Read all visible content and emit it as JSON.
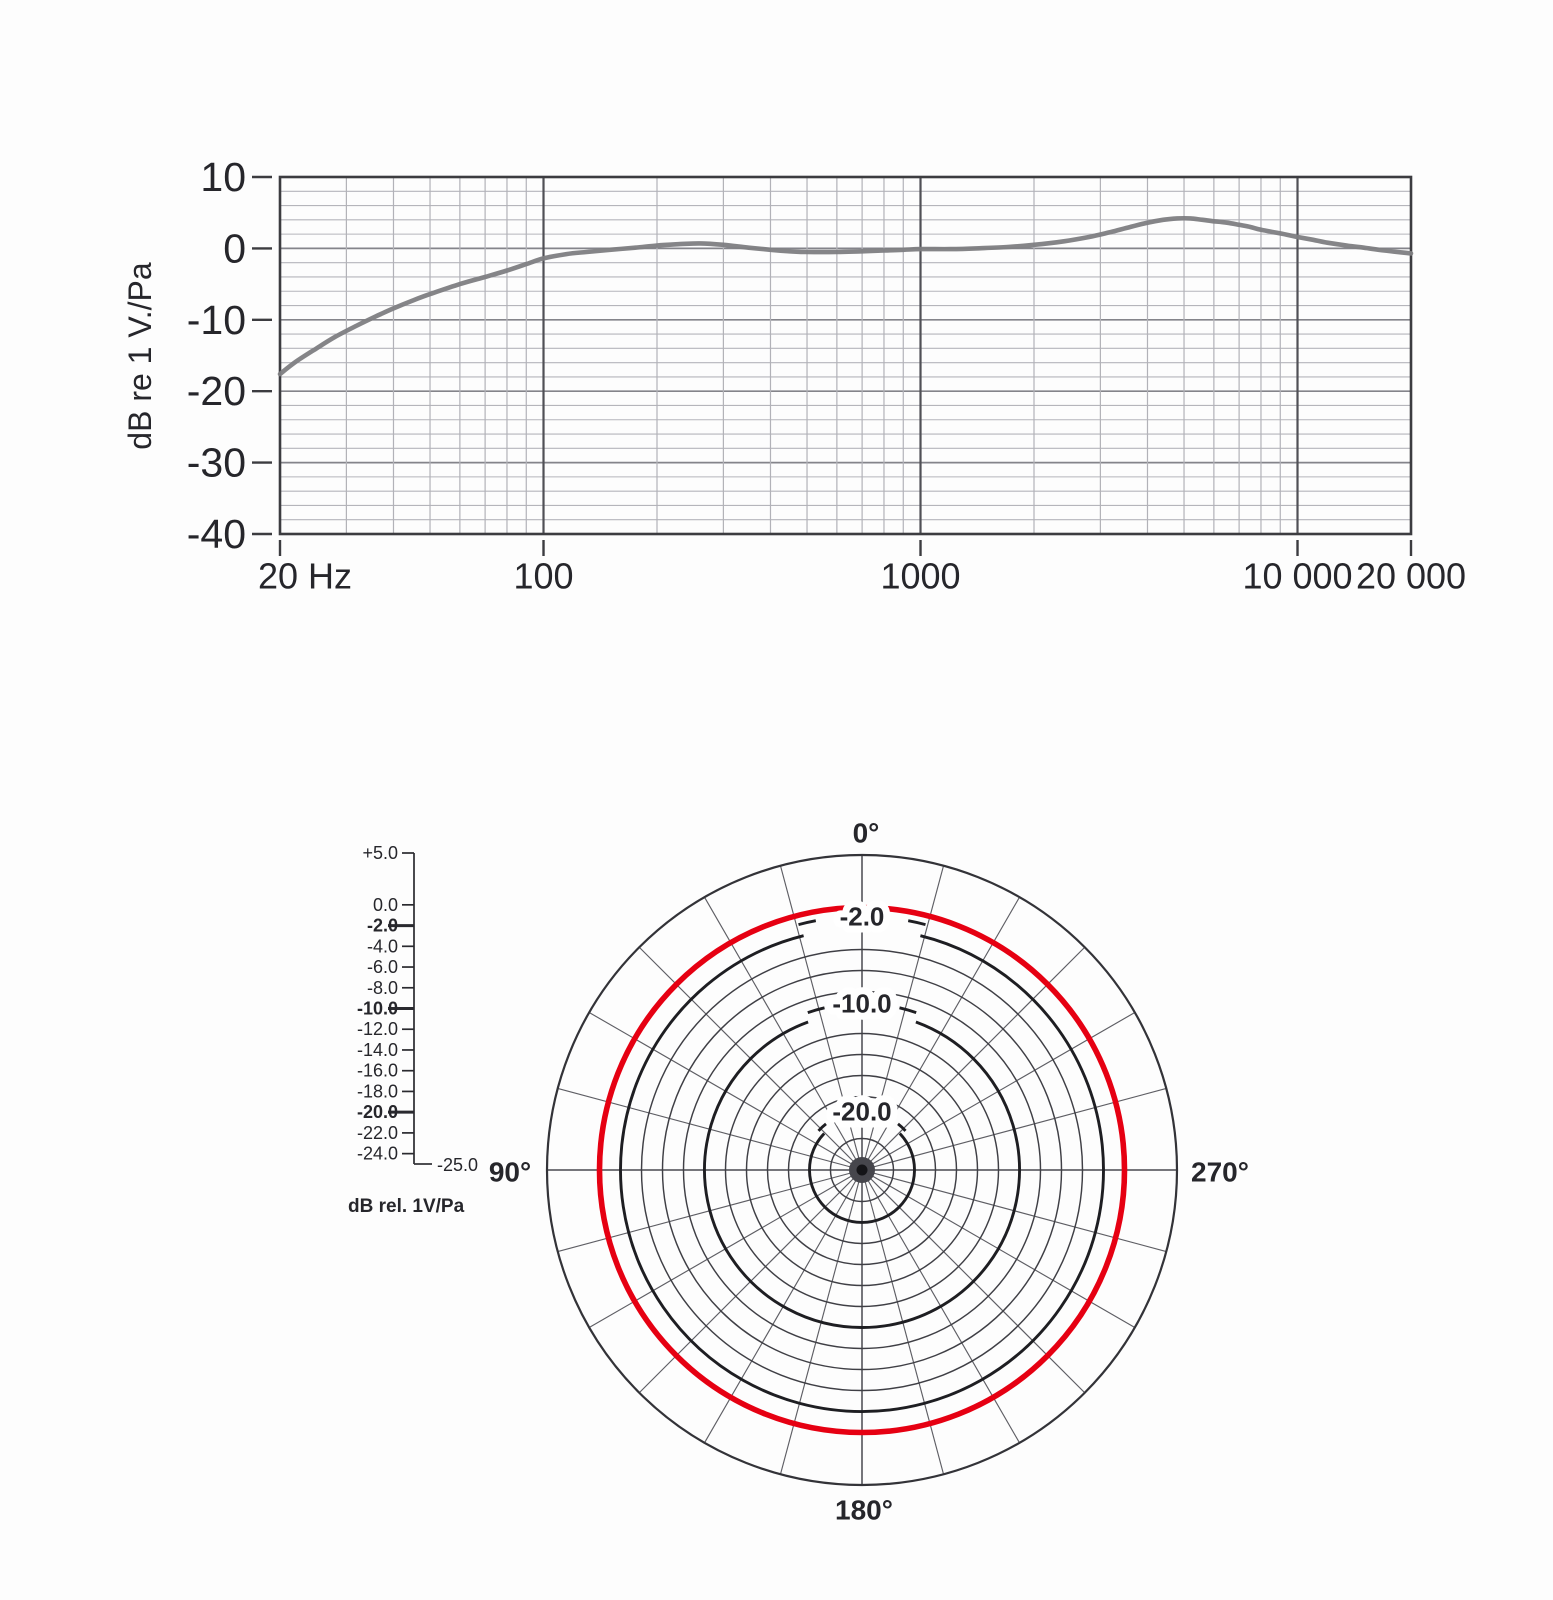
{
  "page": {
    "background": "#fdfdfd"
  },
  "chart_data": [
    {
      "type": "line",
      "title": "",
      "xlabel": "",
      "ylabel": "dB re 1 V./Pa",
      "x_scale": "log",
      "xlim": [
        20,
        20000
      ],
      "ylim": [
        -40,
        10
      ],
      "grid": {
        "y_minor_step": 2,
        "y_major_step": 10,
        "x_minor": "log-decades",
        "legend": "none"
      },
      "x_ticks": [
        {
          "value": 20,
          "label": "20 Hz"
        },
        {
          "value": 100,
          "label": "100"
        },
        {
          "value": 1000,
          "label": "1000"
        },
        {
          "value": 10000,
          "label": "10 000"
        },
        {
          "value": 20000,
          "label": "20 000"
        }
      ],
      "y_ticks": [
        {
          "value": 10,
          "label": "10"
        },
        {
          "value": 0,
          "label": "0"
        },
        {
          "value": -10,
          "label": "-10"
        },
        {
          "value": -20,
          "label": "-20"
        },
        {
          "value": -30,
          "label": "-30"
        },
        {
          "value": -40,
          "label": "-40"
        }
      ],
      "series": [
        {
          "name": "frequency-response-curve",
          "color": "#7e7e82",
          "points": [
            [
              20,
              -17.6
            ],
            [
              22,
              -15.9
            ],
            [
              25,
              -14.0
            ],
            [
              28,
              -12.4
            ],
            [
              32,
              -10.8
            ],
            [
              36,
              -9.5
            ],
            [
              40,
              -8.4
            ],
            [
              45,
              -7.3
            ],
            [
              50,
              -6.4
            ],
            [
              60,
              -5.0
            ],
            [
              70,
              -4.0
            ],
            [
              80,
              -3.1
            ],
            [
              90,
              -2.2
            ],
            [
              100,
              -1.4
            ],
            [
              115,
              -0.8
            ],
            [
              130,
              -0.5
            ],
            [
              150,
              -0.2
            ],
            [
              175,
              0.1
            ],
            [
              200,
              0.4
            ],
            [
              230,
              0.6
            ],
            [
              260,
              0.7
            ],
            [
              300,
              0.5
            ],
            [
              350,
              0.1
            ],
            [
              400,
              -0.2
            ],
            [
              450,
              -0.4
            ],
            [
              500,
              -0.5
            ],
            [
              600,
              -0.5
            ],
            [
              700,
              -0.4
            ],
            [
              800,
              -0.3
            ],
            [
              900,
              -0.2
            ],
            [
              1000,
              -0.1
            ],
            [
              1200,
              -0.1
            ],
            [
              1400,
              0.0
            ],
            [
              1700,
              0.2
            ],
            [
              2000,
              0.5
            ],
            [
              2400,
              1.0
            ],
            [
              2800,
              1.6
            ],
            [
              3200,
              2.3
            ],
            [
              3600,
              3.0
            ],
            [
              4000,
              3.6
            ],
            [
              4400,
              4.0
            ],
            [
              4800,
              4.2
            ],
            [
              5200,
              4.2
            ],
            [
              5600,
              4.0
            ],
            [
              6000,
              3.8
            ],
            [
              6500,
              3.6
            ],
            [
              7000,
              3.3
            ],
            [
              7500,
              3.0
            ],
            [
              8000,
              2.6
            ],
            [
              9000,
              2.1
            ],
            [
              10000,
              1.6
            ],
            [
              11000,
              1.2
            ],
            [
              12000,
              0.8
            ],
            [
              13500,
              0.4
            ],
            [
              15000,
              0.1
            ],
            [
              17000,
              -0.3
            ],
            [
              20000,
              -0.7
            ]
          ]
        }
      ]
    },
    {
      "type": "polar",
      "title": "",
      "outer_db": 5,
      "center_db": -25,
      "spoke_step_deg": 15,
      "bold_rings": [
        {
          "db": -2,
          "label": "-2.0"
        },
        {
          "db": -10,
          "label": "-10.0"
        },
        {
          "db": -20,
          "label": "-20.0"
        }
      ],
      "thin_rings": [
        -4,
        -6,
        -8,
        -12,
        -14,
        -16,
        -18,
        -22,
        -24
      ],
      "angle_labels": [
        {
          "deg": 0,
          "label": "0°"
        },
        {
          "deg": 90,
          "label": "90°"
        },
        {
          "deg": 270,
          "label": "270°"
        },
        {
          "deg": 180,
          "label": "180°"
        }
      ],
      "scale": {
        "caption": "dB rel. 1V/Pa",
        "end_label": "-25.0",
        "ticks": [
          {
            "label": "+5.0",
            "db": 5,
            "bold": false
          },
          {
            "label": "0.0",
            "db": 0,
            "bold": false
          },
          {
            "label": "-2.0",
            "db": -2,
            "bold": true
          },
          {
            "label": "-4.0",
            "db": -4,
            "bold": false
          },
          {
            "label": "-6.0",
            "db": -6,
            "bold": false
          },
          {
            "label": "-8.0",
            "db": -8,
            "bold": false
          },
          {
            "label": "-10.0",
            "db": -10,
            "bold": true
          },
          {
            "label": "-12.0",
            "db": -12,
            "bold": false
          },
          {
            "label": "-14.0",
            "db": -14,
            "bold": false
          },
          {
            "label": "-16.0",
            "db": -16,
            "bold": false
          },
          {
            "label": "-18.0",
            "db": -18,
            "bold": false
          },
          {
            "label": "-20.0",
            "db": -20,
            "bold": true
          },
          {
            "label": "-22.0",
            "db": -22,
            "bold": false
          },
          {
            "label": "-24.0",
            "db": -24,
            "bold": false
          }
        ]
      },
      "pattern": {
        "name": "omnidirectional",
        "color": "#e60012",
        "db": 0.0
      }
    }
  ]
}
